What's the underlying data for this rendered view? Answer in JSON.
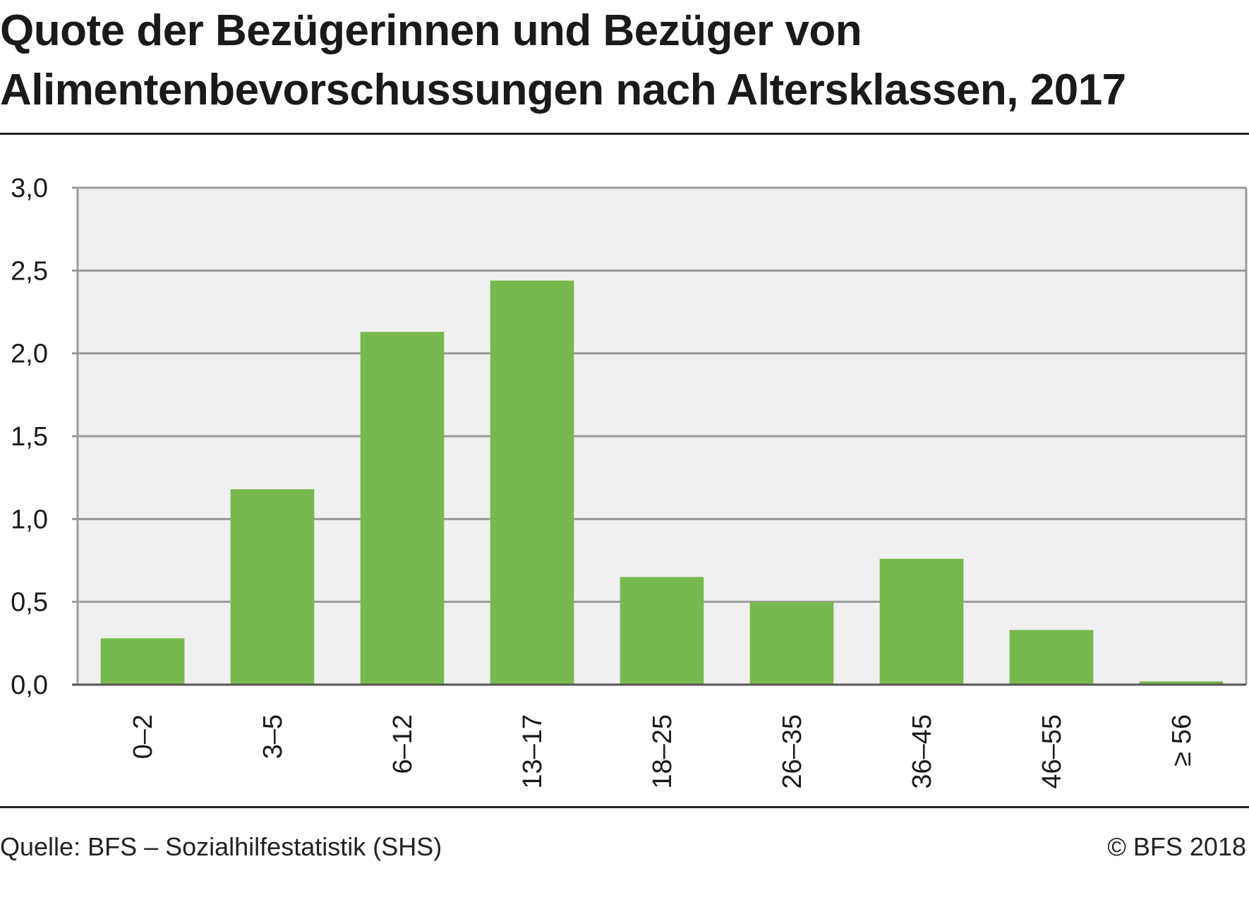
{
  "title_lines": [
    "Quote der Bezügerinnen und Bezüger von",
    "Alimentenbevorschussungen nach Altersklassen, 2017"
  ],
  "source": "Quelle: BFS – Sozialhilfestatistik (SHS)",
  "copyright": "© BFS 2018",
  "colors": {
    "bar": "#78b94f",
    "plot_background": "#f0f0f0",
    "gridline": "#9a9a9a",
    "text": "#1a1a1a"
  },
  "chart_data": {
    "type": "bar",
    "title": "Quote der Bezügerinnen und Bezüger von Alimentenbevorschussungen nach Altersklassen, 2017",
    "xlabel": "",
    "ylabel": "",
    "categories": [
      "0–2",
      "3–5",
      "6–12",
      "13–17",
      "18–25",
      "26–35",
      "36–45",
      "46–55",
      "≥ 56"
    ],
    "values": [
      0.28,
      1.18,
      2.13,
      2.44,
      0.65,
      0.5,
      0.76,
      0.33,
      0.02
    ],
    "ylim": [
      0,
      3.0
    ],
    "yticks": [
      0.0,
      0.5,
      1.0,
      1.5,
      2.0,
      2.5,
      3.0
    ],
    "ytick_labels": [
      "0,0",
      "0,5",
      "1,0",
      "1,5",
      "2,0",
      "2,5",
      "3,0"
    ],
    "grid": true,
    "legend": "none"
  }
}
